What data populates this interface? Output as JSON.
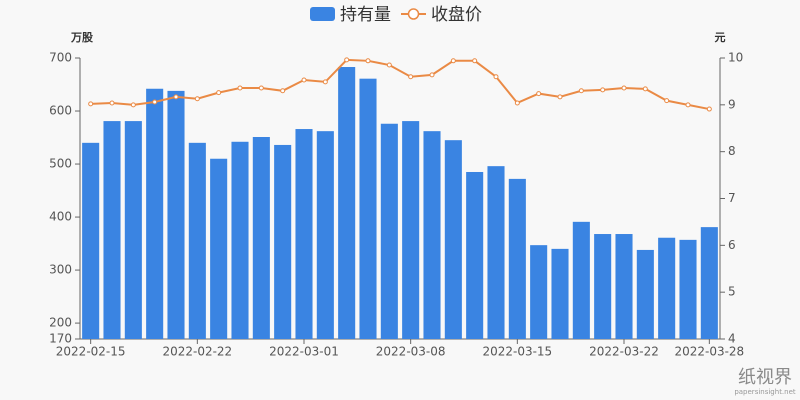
{
  "chart_data": {
    "type": "bar_line",
    "categories": [
      "2022-02-15",
      null,
      null,
      null,
      null,
      "2022-02-22",
      null,
      null,
      null,
      null,
      "2022-03-01",
      null,
      null,
      null,
      null,
      "2022-03-08",
      null,
      null,
      null,
      null,
      "2022-03-15",
      null,
      null,
      null,
      null,
      "2022-03-22",
      null,
      null,
      null,
      "2022-03-28"
    ],
    "series": [
      {
        "name": "持有量",
        "color": "#3a84e2",
        "type": "bar",
        "values": [
          540,
          581,
          581,
          642,
          638,
          540,
          510,
          542,
          551,
          536,
          566,
          562,
          683,
          661,
          576,
          581,
          562,
          545,
          485,
          496,
          472,
          347,
          340,
          391,
          368,
          368,
          338,
          361,
          357,
          381
        ]
      },
      {
        "name": "收盘价",
        "color": "#ea8a45",
        "type": "line",
        "axis": "y2",
        "values": [
          9.02,
          9.04,
          9.0,
          9.06,
          9.17,
          9.13,
          9.26,
          9.36,
          9.36,
          9.3,
          9.53,
          9.49,
          9.96,
          9.94,
          9.85,
          9.6,
          9.64,
          9.94,
          9.94,
          9.6,
          9.04,
          9.24,
          9.17,
          9.3,
          9.32,
          9.36,
          9.34,
          9.09,
          9.0,
          8.91
        ]
      }
    ],
    "ylabel": "万股",
    "y2label": "元",
    "ylim": [
      170,
      700
    ],
    "yticks": [
      170,
      200,
      300,
      400,
      500,
      600,
      700
    ],
    "y2lim": [
      4,
      10
    ],
    "y2ticks": [
      4,
      5,
      6,
      7,
      8,
      9,
      10
    ],
    "legend": "top",
    "watermark": {
      "brand": "纸视界",
      "site": "papersinsight.net"
    }
  }
}
